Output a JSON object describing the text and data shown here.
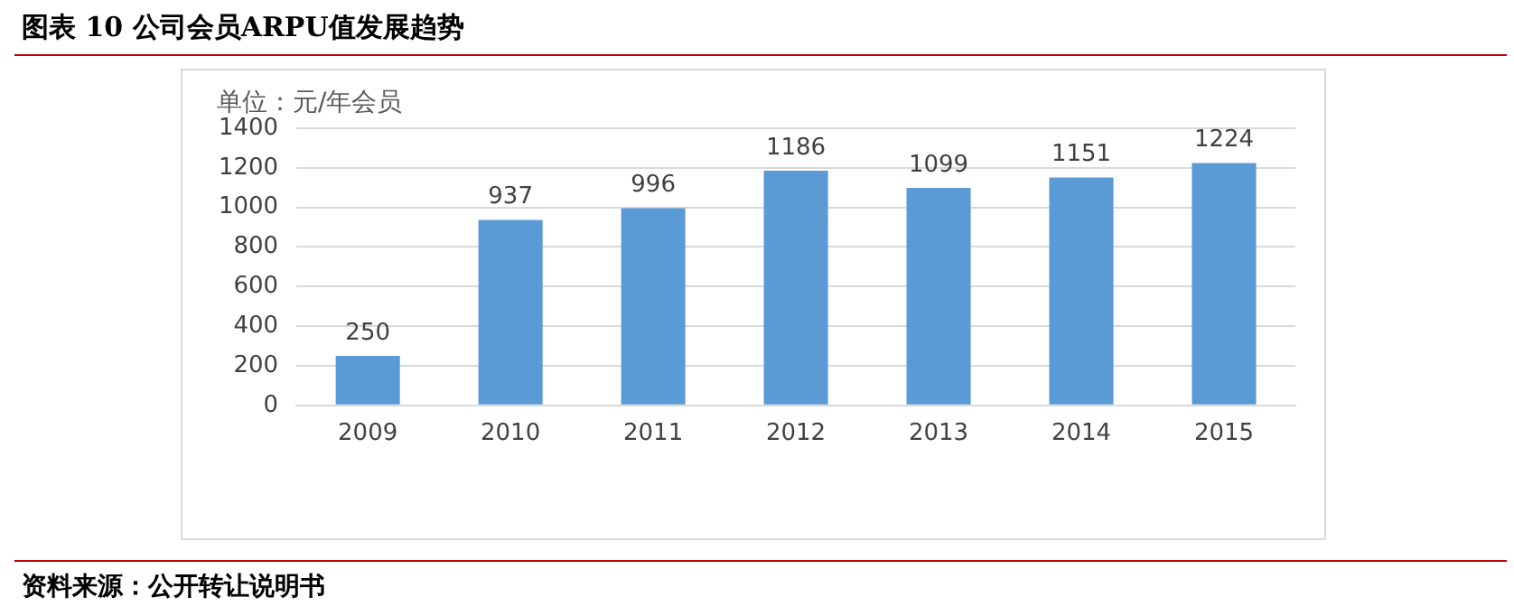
{
  "chart_data": {
    "type": "bar",
    "title": "图表 10  公司会员ARPU值发展趋势",
    "ylabel": "单位：元/年会员",
    "categories": [
      "2009",
      "2010",
      "2011",
      "2012",
      "2013",
      "2014",
      "2015"
    ],
    "values": [
      250,
      937,
      996,
      1186,
      1099,
      1151,
      1224
    ],
    "color": "#5b9bd5",
    "ylim": [
      0,
      1400
    ],
    "yticks": [
      0,
      200,
      400,
      600,
      800,
      1000,
      1200,
      1400
    ],
    "grid": "y",
    "data_labels": true,
    "legend": false,
    "annotations": [
      "资料来源：公开转让说明书"
    ]
  }
}
